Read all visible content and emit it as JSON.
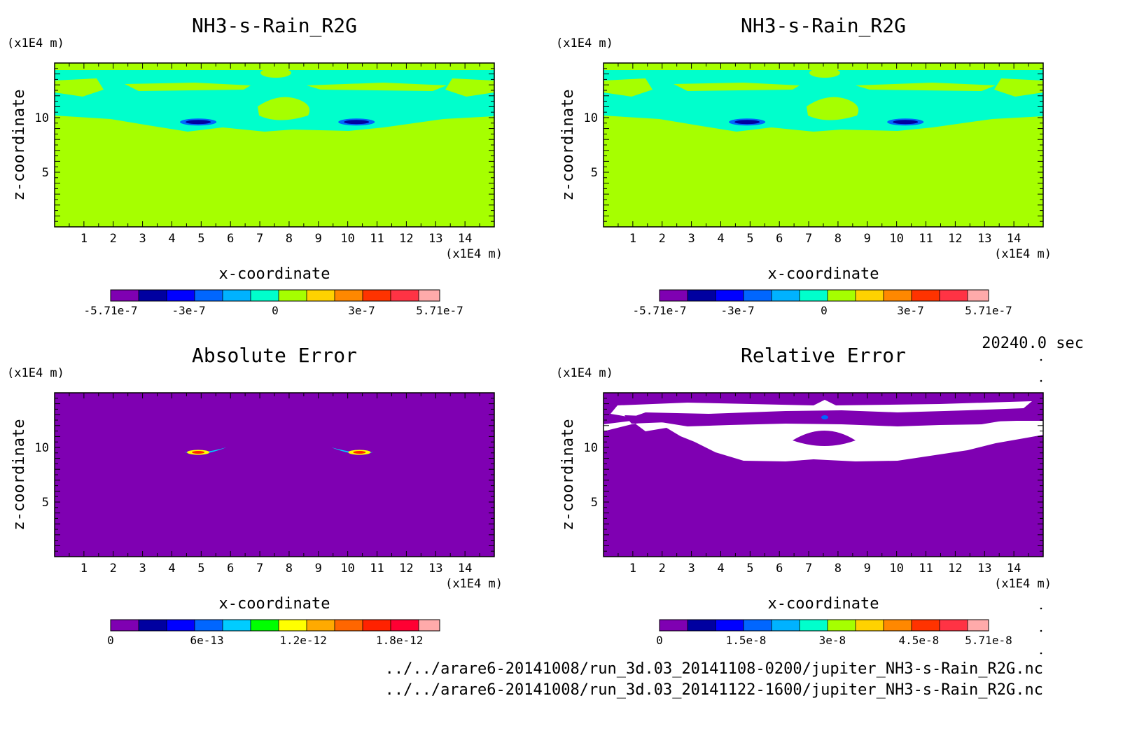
{
  "time_label": "20240.0 sec",
  "files": [
    "../../arare6-20141008/run_3d.03_20141108-0200/jupiter_NH3-s-Rain_R2G.nc",
    "../../arare6-20141008/run_3d.03_20141122-1600/jupiter_NH3-s-Rain_R2G.nc"
  ],
  "colors": {
    "background_field": "#a6ff00",
    "cyan_band": "#00ffcc",
    "purple": "#7f00b2",
    "white": "#ffffff"
  },
  "chart_data": [
    {
      "type": "heatmap",
      "title": "NH3-s-Rain_R2G",
      "xlabel": "x-coordinate",
      "ylabel": "z-coordinate",
      "x_unit": "(x1E4 m)",
      "y_unit": "(x1E4 m)",
      "xlim": [
        0,
        15
      ],
      "ylim": [
        0,
        15
      ],
      "x_ticks": [
        1,
        2,
        3,
        4,
        5,
        6,
        7,
        8,
        9,
        10,
        11,
        12,
        13,
        14
      ],
      "y_ticks": [
        5,
        10
      ],
      "colorbar": {
        "colors": [
          "#7f00b2",
          "#0000a0",
          "#0000ff",
          "#0066ff",
          "#00b2ff",
          "#00ffcc",
          "#a6ff00",
          "#ffd200",
          "#ff8800",
          "#ff3300",
          "#ff3344",
          "#ffaaaa"
        ],
        "tick_labels": [
          "-5.71e-7",
          "-3e-7",
          "0",
          "3e-7",
          "5.71e-7"
        ],
        "tick_values": [
          -5.71e-07,
          -3e-07,
          0,
          3e-07,
          5.71e-07
        ],
        "range": [
          -5.71e-07,
          5.71e-07
        ]
      }
    },
    {
      "type": "heatmap",
      "title": "NH3-s-Rain_R2G",
      "xlabel": "x-coordinate",
      "ylabel": "z-coordinate",
      "x_unit": "(x1E4 m)",
      "y_unit": "(x1E4 m)",
      "xlim": [
        0,
        15
      ],
      "ylim": [
        0,
        15
      ],
      "x_ticks": [
        1,
        2,
        3,
        4,
        5,
        6,
        7,
        8,
        9,
        10,
        11,
        12,
        13,
        14
      ],
      "y_ticks": [
        5,
        10
      ],
      "colorbar": {
        "colors": [
          "#7f00b2",
          "#0000a0",
          "#0000ff",
          "#0066ff",
          "#00b2ff",
          "#00ffcc",
          "#a6ff00",
          "#ffd200",
          "#ff8800",
          "#ff3300",
          "#ff3344",
          "#ffaaaa"
        ],
        "tick_labels": [
          "-5.71e-7",
          "-3e-7",
          "0",
          "3e-7",
          "5.71e-7"
        ],
        "tick_values": [
          -5.71e-07,
          -3e-07,
          0,
          3e-07,
          5.71e-07
        ],
        "range": [
          -5.71e-07,
          5.71e-07
        ]
      }
    },
    {
      "type": "heatmap",
      "title": "Absolute Error",
      "xlabel": "x-coordinate",
      "ylabel": "z-coordinate",
      "x_unit": "(x1E4 m)",
      "y_unit": "(x1E4 m)",
      "xlim": [
        0,
        15
      ],
      "ylim": [
        0,
        15
      ],
      "x_ticks": [
        1,
        2,
        3,
        4,
        5,
        6,
        7,
        8,
        9,
        10,
        11,
        12,
        13,
        14
      ],
      "y_ticks": [
        5,
        10
      ],
      "colorbar": {
        "colors": [
          "#7f00b2",
          "#0000a0",
          "#0000ff",
          "#0066ff",
          "#00ccff",
          "#00ff00",
          "#ffff00",
          "#ffaa00",
          "#ff6600",
          "#ff2200",
          "#ff0033",
          "#ffaaaa"
        ],
        "tick_labels": [
          "0",
          "6e-13",
          "1.2e-12",
          "1.8e-12"
        ],
        "tick_values": [
          0,
          6e-13,
          1.2e-12,
          1.8e-12
        ],
        "range": [
          0,
          2.05e-12
        ]
      }
    },
    {
      "type": "heatmap",
      "title": "Relative Error",
      "xlabel": "x-coordinate",
      "ylabel": "z-coordinate",
      "x_unit": "(x1E4 m)",
      "y_unit": "(x1E4 m)",
      "xlim": [
        0,
        15
      ],
      "ylim": [
        0,
        15
      ],
      "x_ticks": [
        1,
        2,
        3,
        4,
        5,
        6,
        7,
        8,
        9,
        10,
        11,
        12,
        13,
        14
      ],
      "y_ticks": [
        5,
        10
      ],
      "colorbar": {
        "colors": [
          "#7f00b2",
          "#0000a0",
          "#0000ff",
          "#0066ff",
          "#00b2ff",
          "#00ffcc",
          "#a6ff00",
          "#ffd200",
          "#ff8800",
          "#ff3300",
          "#ff3344",
          "#ffaaaa"
        ],
        "tick_labels": [
          "0",
          "1.5e-8",
          "3e-8",
          "4.5e-8",
          "5.71e-8"
        ],
        "tick_values": [
          0,
          1.5e-08,
          3e-08,
          4.5e-08,
          5.71e-08
        ],
        "range": [
          0,
          5.71e-08
        ]
      }
    }
  ]
}
